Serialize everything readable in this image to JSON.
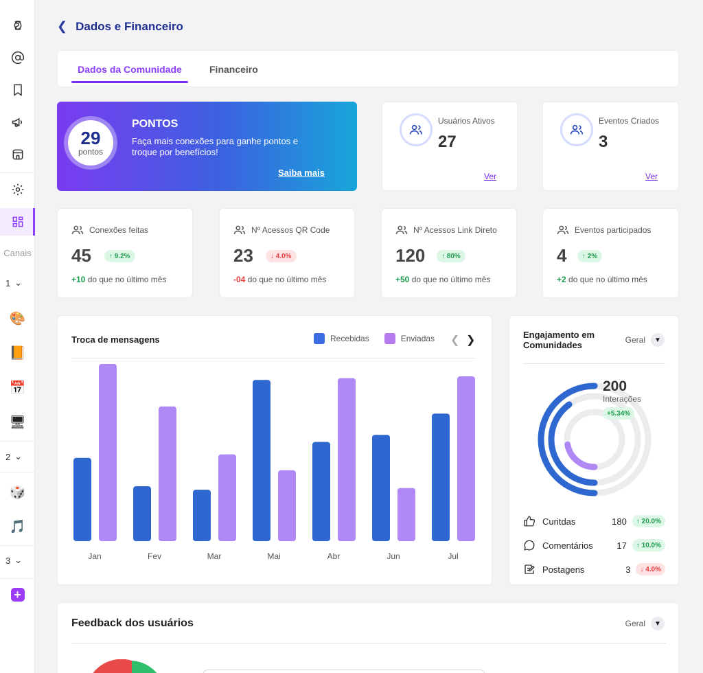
{
  "sidebar": {
    "canais_label": "Canais",
    "groups": [
      {
        "label": "1"
      },
      {
        "label": "2"
      },
      {
        "label": "3"
      }
    ]
  },
  "header": {
    "back_icon": "chevron-left-icon",
    "title": "Dados e Financeiro"
  },
  "tabs": [
    {
      "label": "Dados da Comunidade",
      "active": true
    },
    {
      "label": "Financeiro",
      "active": false
    }
  ],
  "points": {
    "value": "29",
    "unit": "pontos",
    "title": "PONTOS",
    "description": "Faça mais conexões para ganhe pontos e troque por benefícios!",
    "link": "Saiba mais"
  },
  "stats": [
    {
      "label": "Usuários Ativos",
      "value": "27",
      "link": "Ver"
    },
    {
      "label": "Eventos Criados",
      "value": "3",
      "link": "Ver"
    }
  ],
  "metrics": [
    {
      "label": "Conexões feitas",
      "value": "45",
      "badge": "↑ 9.2%",
      "trend": "up",
      "delta": "+10",
      "foot": " do que no último mês"
    },
    {
      "label": "Nº Acessos QR Code",
      "value": "23",
      "badge": "↓ 4.0%",
      "trend": "down",
      "delta": "-04",
      "foot": " do que no último mês"
    },
    {
      "label": "Nº Acessos Link Direto",
      "value": "120",
      "badge": "↑ 80%",
      "trend": "up",
      "delta": "+50",
      "foot": " do que no último mês"
    },
    {
      "label": "Eventos participados",
      "value": "4",
      "badge": "↑ 2%",
      "trend": "up",
      "delta": "+2",
      "foot": " do que no último mês"
    }
  ],
  "chart_data": {
    "type": "bar",
    "title": "Troca de mensagens",
    "categories": [
      "Jan",
      "Fev",
      "Mar",
      "Mai",
      "Abr",
      "Jun",
      "Jul"
    ],
    "series": [
      {
        "name": "Recebidas",
        "color": "#2f67d0",
        "values": [
          47,
          31,
          29,
          91,
          56,
          60,
          72
        ]
      },
      {
        "name": "Enviadas",
        "color": "#b088f5",
        "values": [
          100,
          76,
          49,
          40,
          92,
          30,
          93
        ]
      }
    ],
    "ylim": [
      0,
      100
    ],
    "grid": false,
    "legend": "top-right",
    "nav_prev_icon": "chevron-left-icon",
    "nav_next_icon": "chevron-right-icon"
  },
  "engagement": {
    "title": "Engajamento em Comunidades",
    "filter": "Geral",
    "total": "200",
    "total_label": "Interações",
    "total_badge": "+5.34%",
    "rows": [
      {
        "icon": "thumbs-up-icon",
        "label": "Curitdas",
        "value": "180",
        "badge": "↑ 20.0%",
        "trend": "up"
      },
      {
        "icon": "comment-icon",
        "label": "Comentários",
        "value": "17",
        "badge": "↑ 10.0%",
        "trend": "up"
      },
      {
        "icon": "post-icon",
        "label": "Postagens",
        "value": "3",
        "badge": "↓ 4.0%",
        "trend": "down"
      }
    ],
    "ring_values": [
      180,
      17,
      3
    ],
    "ring_colors": [
      "#2f67d0",
      "#2f67d0",
      "#b088f5"
    ]
  },
  "feedback": {
    "title": "Feedback dos usuários",
    "filter": "Geral"
  },
  "colors": {
    "accent": "#8b3dff",
    "primary": "#1f2f8f",
    "up": "#1e9a4c",
    "down": "#e23e3e"
  }
}
